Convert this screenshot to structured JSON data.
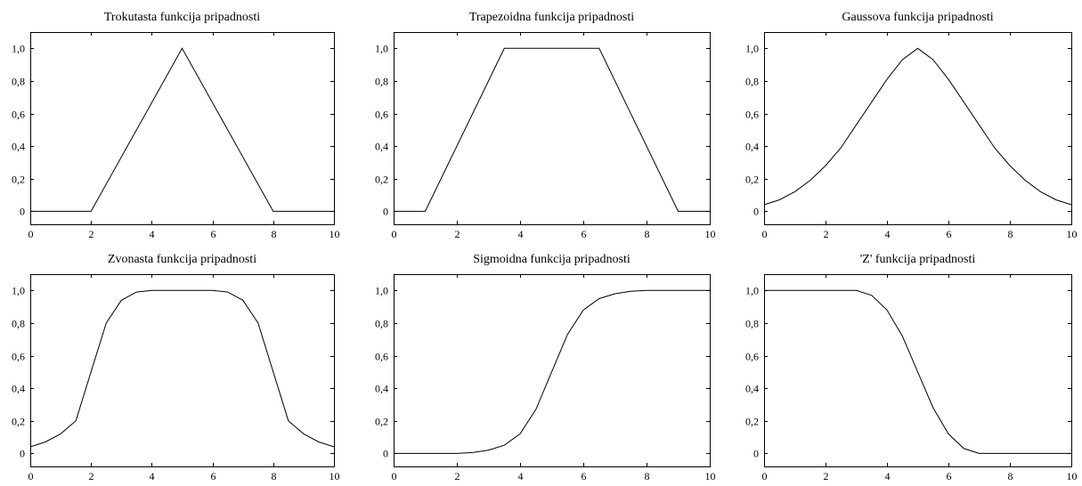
{
  "chart_data": [
    {
      "type": "line",
      "title": "Trokutasta funkcija pripadnosti",
      "xlim": [
        0,
        10
      ],
      "ylim": [
        -0.08,
        1.1
      ],
      "xticks": [
        "0",
        "2",
        "4",
        "6",
        "8",
        "10"
      ],
      "yticks": [
        "0",
        "0,2",
        "0,4",
        "0,6",
        "0,8",
        "1,0"
      ],
      "grid": false,
      "x": [
        0,
        2,
        5,
        8,
        10
      ],
      "y": [
        0,
        0,
        1,
        0,
        0
      ]
    },
    {
      "type": "line",
      "title": "Trapezoidna funkcija pripadnosti",
      "xlim": [
        0,
        10
      ],
      "ylim": [
        -0.08,
        1.1
      ],
      "xticks": [
        "0",
        "2",
        "4",
        "6",
        "8",
        "10"
      ],
      "yticks": [
        "0",
        "0,2",
        "0,4",
        "0,6",
        "0,8",
        "1,0"
      ],
      "grid": false,
      "x": [
        0,
        1,
        3.5,
        6.5,
        9,
        10
      ],
      "y": [
        0,
        0,
        1,
        1,
        0,
        0
      ]
    },
    {
      "type": "line",
      "title": "Gaussova funkcija pripadnosti",
      "xlim": [
        0,
        10
      ],
      "ylim": [
        -0.08,
        1.1
      ],
      "xticks": [
        "0",
        "2",
        "4",
        "6",
        "8",
        "10"
      ],
      "yticks": [
        "0",
        "0,2",
        "0,4",
        "0,6",
        "0,8",
        "1,0"
      ],
      "grid": false,
      "x": [
        0,
        0.5,
        1,
        1.5,
        2,
        2.5,
        3,
        3.5,
        4,
        4.5,
        5,
        5.5,
        6,
        6.5,
        7,
        7.5,
        8,
        8.5,
        9,
        9.5,
        10
      ],
      "y": [
        0.04,
        0.07,
        0.12,
        0.19,
        0.28,
        0.39,
        0.53,
        0.67,
        0.81,
        0.93,
        1.0,
        0.93,
        0.81,
        0.67,
        0.53,
        0.39,
        0.28,
        0.19,
        0.12,
        0.07,
        0.04
      ]
    },
    {
      "type": "line",
      "title": "Zvonasta funkcija pripadnosti",
      "xlim": [
        0,
        10
      ],
      "ylim": [
        -0.08,
        1.1
      ],
      "xticks": [
        "0",
        "2",
        "4",
        "6",
        "8",
        "10"
      ],
      "yticks": [
        "0",
        "0,2",
        "0,4",
        "0,6",
        "0,8",
        "1,0"
      ],
      "grid": false,
      "x": [
        0,
        0.5,
        1,
        1.5,
        2,
        2.5,
        3,
        3.5,
        4,
        4.5,
        5,
        5.5,
        6,
        6.5,
        7,
        7.5,
        8,
        8.5,
        9,
        9.5,
        10
      ],
      "y": [
        0.04,
        0.07,
        0.12,
        0.2,
        0.5,
        0.8,
        0.94,
        0.99,
        1.0,
        1.0,
        1.0,
        1.0,
        1.0,
        0.99,
        0.94,
        0.8,
        0.5,
        0.2,
        0.12,
        0.07,
        0.04
      ]
    },
    {
      "type": "line",
      "title": "Sigmoidna funkcija pripadnosti",
      "xlim": [
        0,
        10
      ],
      "ylim": [
        -0.08,
        1.1
      ],
      "xticks": [
        "0",
        "2",
        "4",
        "6",
        "8",
        "10"
      ],
      "yticks": [
        "0",
        "0,2",
        "0,4",
        "0,6",
        "0,8",
        "1,0"
      ],
      "grid": false,
      "x": [
        0,
        1,
        2,
        2.5,
        3,
        3.5,
        4,
        4.5,
        5,
        5.5,
        6,
        6.5,
        7,
        7.5,
        8,
        9,
        10
      ],
      "y": [
        0,
        0,
        0,
        0.005,
        0.02,
        0.05,
        0.12,
        0.27,
        0.5,
        0.73,
        0.88,
        0.95,
        0.98,
        0.995,
        1.0,
        1.0,
        1.0
      ]
    },
    {
      "type": "line",
      "title": "'Z' funkcija pripadnosti",
      "xlim": [
        0,
        10
      ],
      "ylim": [
        -0.08,
        1.1
      ],
      "xticks": [
        "0",
        "2",
        "4",
        "6",
        "8",
        "10"
      ],
      "yticks": [
        "0",
        "0,2",
        "0,4",
        "0,6",
        "0,8",
        "1,0"
      ],
      "grid": false,
      "x": [
        0,
        1,
        2,
        3,
        3.5,
        4,
        4.5,
        5,
        5.5,
        6,
        6.5,
        7,
        8,
        9,
        10
      ],
      "y": [
        1,
        1,
        1,
        1,
        0.97,
        0.88,
        0.72,
        0.5,
        0.28,
        0.12,
        0.03,
        0,
        0,
        0,
        0
      ]
    }
  ]
}
